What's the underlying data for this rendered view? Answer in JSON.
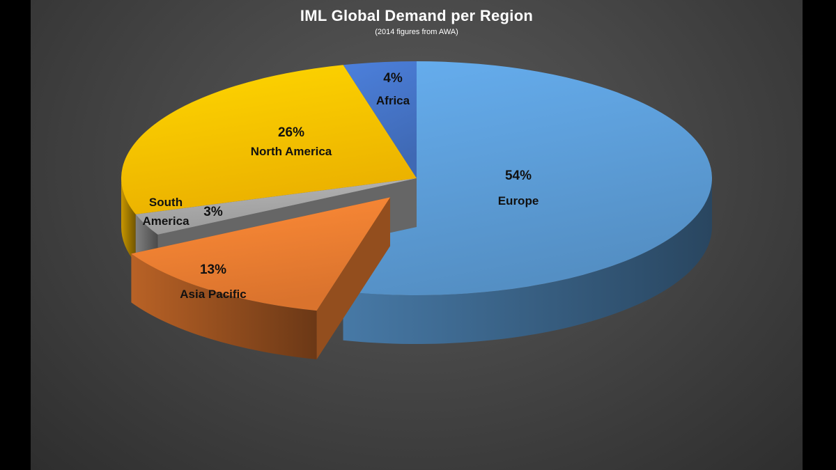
{
  "chart_data": {
    "type": "pie",
    "title": "IML Global Demand per Region",
    "subtitle": "(2014 figures from AWA)",
    "slices": [
      {
        "label": "Europe",
        "value": 54,
        "value_label": "54%",
        "color": "#5b9bd5",
        "exploded": false
      },
      {
        "label": "Asia Pacific",
        "value": 13,
        "value_label": "13%",
        "color": "#ed7d31",
        "exploded": true
      },
      {
        "label": "South America",
        "label_lines": [
          "South",
          "America"
        ],
        "value": 3,
        "value_label": "3%",
        "color": "#a5a5a5",
        "exploded": false
      },
      {
        "label": "North America",
        "value": 26,
        "value_label": "26%",
        "color": "#ffc000",
        "exploded": false
      },
      {
        "label": "Africa",
        "value": 4,
        "value_label": "4%",
        "color": "#4472c4",
        "exploded": false
      }
    ],
    "style": "3d-exploded"
  }
}
